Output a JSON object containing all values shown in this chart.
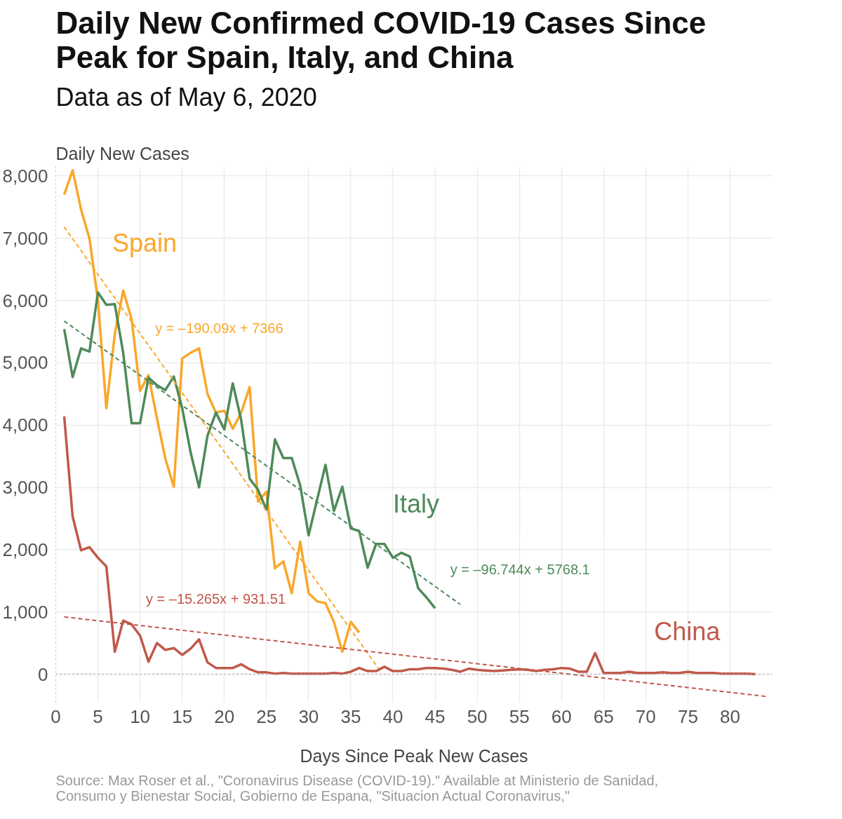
{
  "chart_data": {
    "type": "line",
    "title": "Daily New Confirmed COVID-19 Cases Since Peak for Spain, Italy, and China",
    "subtitle": "Data as of May 6, 2020",
    "ylabel": "Daily New Cases",
    "xlabel": "Days Since Peak New Cases",
    "xlim": [
      0,
      85
    ],
    "ylim": [
      -450,
      8150
    ],
    "xticks": [
      0,
      5,
      10,
      15,
      20,
      25,
      30,
      35,
      40,
      45,
      50,
      55,
      60,
      65,
      70,
      75,
      80
    ],
    "yticks": [
      0,
      {
        "value": 1000,
        "label": "1,000"
      },
      {
        "value": 2000,
        "label": "2,000"
      },
      {
        "value": 3000,
        "label": "3,000"
      },
      {
        "value": 4000,
        "label": "4,000"
      },
      {
        "value": 5000,
        "label": "5,000"
      },
      {
        "value": 6000,
        "label": "6,000"
      },
      {
        "value": 7000,
        "label": "7,000"
      },
      {
        "value": 8000,
        "label": "8,000"
      }
    ],
    "grid": true,
    "marker": "none",
    "ref_lines": [
      {
        "axis": "y",
        "value": 0,
        "label": null,
        "color": "#aaaaaa",
        "line_style": "dotted"
      }
    ],
    "series": [
      {
        "color": "#f9a72b",
        "line_style": "solid",
        "x": [
          1,
          2,
          3,
          4,
          5,
          6,
          7,
          8,
          9,
          10,
          11,
          12,
          13,
          14,
          15,
          16,
          17,
          18,
          19,
          20,
          21,
          22,
          23,
          24,
          25,
          26,
          27,
          28,
          29,
          30,
          31,
          32,
          33,
          34,
          35,
          36
        ],
        "values": [
          7700,
          8090,
          7460,
          6990,
          6000,
          4270,
          5460,
          6160,
          5700,
          4550,
          4800,
          4110,
          3460,
          3010,
          5070,
          5160,
          5230,
          4500,
          4200,
          4230,
          3940,
          4200,
          4610,
          2770,
          2930,
          1700,
          1810,
          1300,
          2130,
          1300,
          1170,
          1140,
          840,
          360,
          840,
          670
        ]
      },
      {
        "color": "#4e8a5a",
        "line_style": "solid",
        "x": [
          1,
          2,
          3,
          4,
          5,
          6,
          7,
          8,
          9,
          10,
          11,
          12,
          13,
          14,
          15,
          16,
          17,
          18,
          19,
          20,
          21,
          22,
          23,
          24,
          25,
          26,
          27,
          28,
          29,
          30,
          31,
          32,
          33,
          34,
          35,
          36,
          37,
          38,
          39,
          40,
          41,
          42,
          43,
          44,
          45
        ],
        "values": [
          5540,
          4770,
          5230,
          5180,
          6130,
          5930,
          5940,
          5160,
          4030,
          4030,
          4760,
          4640,
          4560,
          4780,
          4270,
          3560,
          3000,
          3830,
          4200,
          3930,
          4670,
          4080,
          3140,
          2960,
          2640,
          3770,
          3470,
          3470,
          3030,
          2230,
          2800,
          3360,
          2620,
          3010,
          2340,
          2300,
          1710,
          2090,
          2090,
          1870,
          1950,
          1890,
          1380,
          1230,
          1060
        ]
      },
      {
        "color": "#c0594b",
        "line_style": "solid",
        "x": [
          1,
          2,
          3,
          4,
          5,
          6,
          7,
          8,
          9,
          10,
          11,
          12,
          13,
          14,
          15,
          16,
          17,
          18,
          19,
          20,
          21,
          22,
          23,
          24,
          25,
          26,
          27,
          28,
          29,
          30,
          31,
          32,
          33,
          34,
          35,
          36,
          37,
          38,
          39,
          40,
          41,
          42,
          43,
          44,
          45,
          46,
          47,
          48,
          49,
          50,
          51,
          52,
          53,
          54,
          55,
          56,
          57,
          58,
          59,
          60,
          61,
          62,
          63,
          64,
          65,
          66,
          67,
          68,
          69,
          70,
          71,
          72,
          73,
          74,
          75,
          76,
          77,
          78,
          79,
          80,
          81,
          82,
          83
        ],
        "values": [
          4140,
          2530,
          1990,
          2040,
          1870,
          1730,
          360,
          860,
          800,
          620,
          200,
          500,
          390,
          420,
          310,
          410,
          560,
          190,
          100,
          100,
          100,
          160,
          80,
          30,
          30,
          10,
          20,
          10,
          10,
          10,
          10,
          10,
          20,
          10,
          40,
          100,
          50,
          50,
          120,
          50,
          50,
          80,
          80,
          100,
          100,
          90,
          70,
          40,
          90,
          70,
          60,
          50,
          60,
          70,
          80,
          70,
          50,
          70,
          80,
          100,
          90,
          40,
          40,
          340,
          20,
          20,
          20,
          40,
          20,
          20,
          20,
          30,
          20,
          20,
          40,
          20,
          20,
          20,
          10,
          10,
          10,
          10,
          0
        ]
      },
      {
        "color": "#f9a72b",
        "line_style": "dashed",
        "x": [
          1,
          38.3
        ],
        "values": [
          7180,
          90
        ]
      },
      {
        "color": "#4e8a5a",
        "line_style": "dashed",
        "x": [
          1,
          48
        ],
        "values": [
          5670,
          1120
        ]
      },
      {
        "color": "#c0594b",
        "line_style": "dashed",
        "x": [
          1,
          84.5
        ],
        "values": [
          920,
          -360
        ]
      }
    ],
    "annotations": [
      {
        "text": "Spain",
        "x": 6.7,
        "y": 6090
      },
      {
        "text": "Italy",
        "x": 40,
        "y": 1900
      },
      {
        "text": "China",
        "x": 71,
        "y": -150
      },
      {
        "text": "y = –190.09x + 7366",
        "x": 11.8,
        "y": 5120
      },
      {
        "text": "y = –96.744x + 5768.1",
        "x": 46.8,
        "y": 1240
      },
      {
        "text": "y = –15.265x + 931.51",
        "x": 10.7,
        "y": 770
      },
      "Source: Max Roser et al., \"Coronavirus Disease (COVID-19).\" Available at Ministerio de Sanidad, Consumo y Bienestar Social, Gobierno de Espana, \"Situacion Actual Coronavirus,\""
    ]
  }
}
